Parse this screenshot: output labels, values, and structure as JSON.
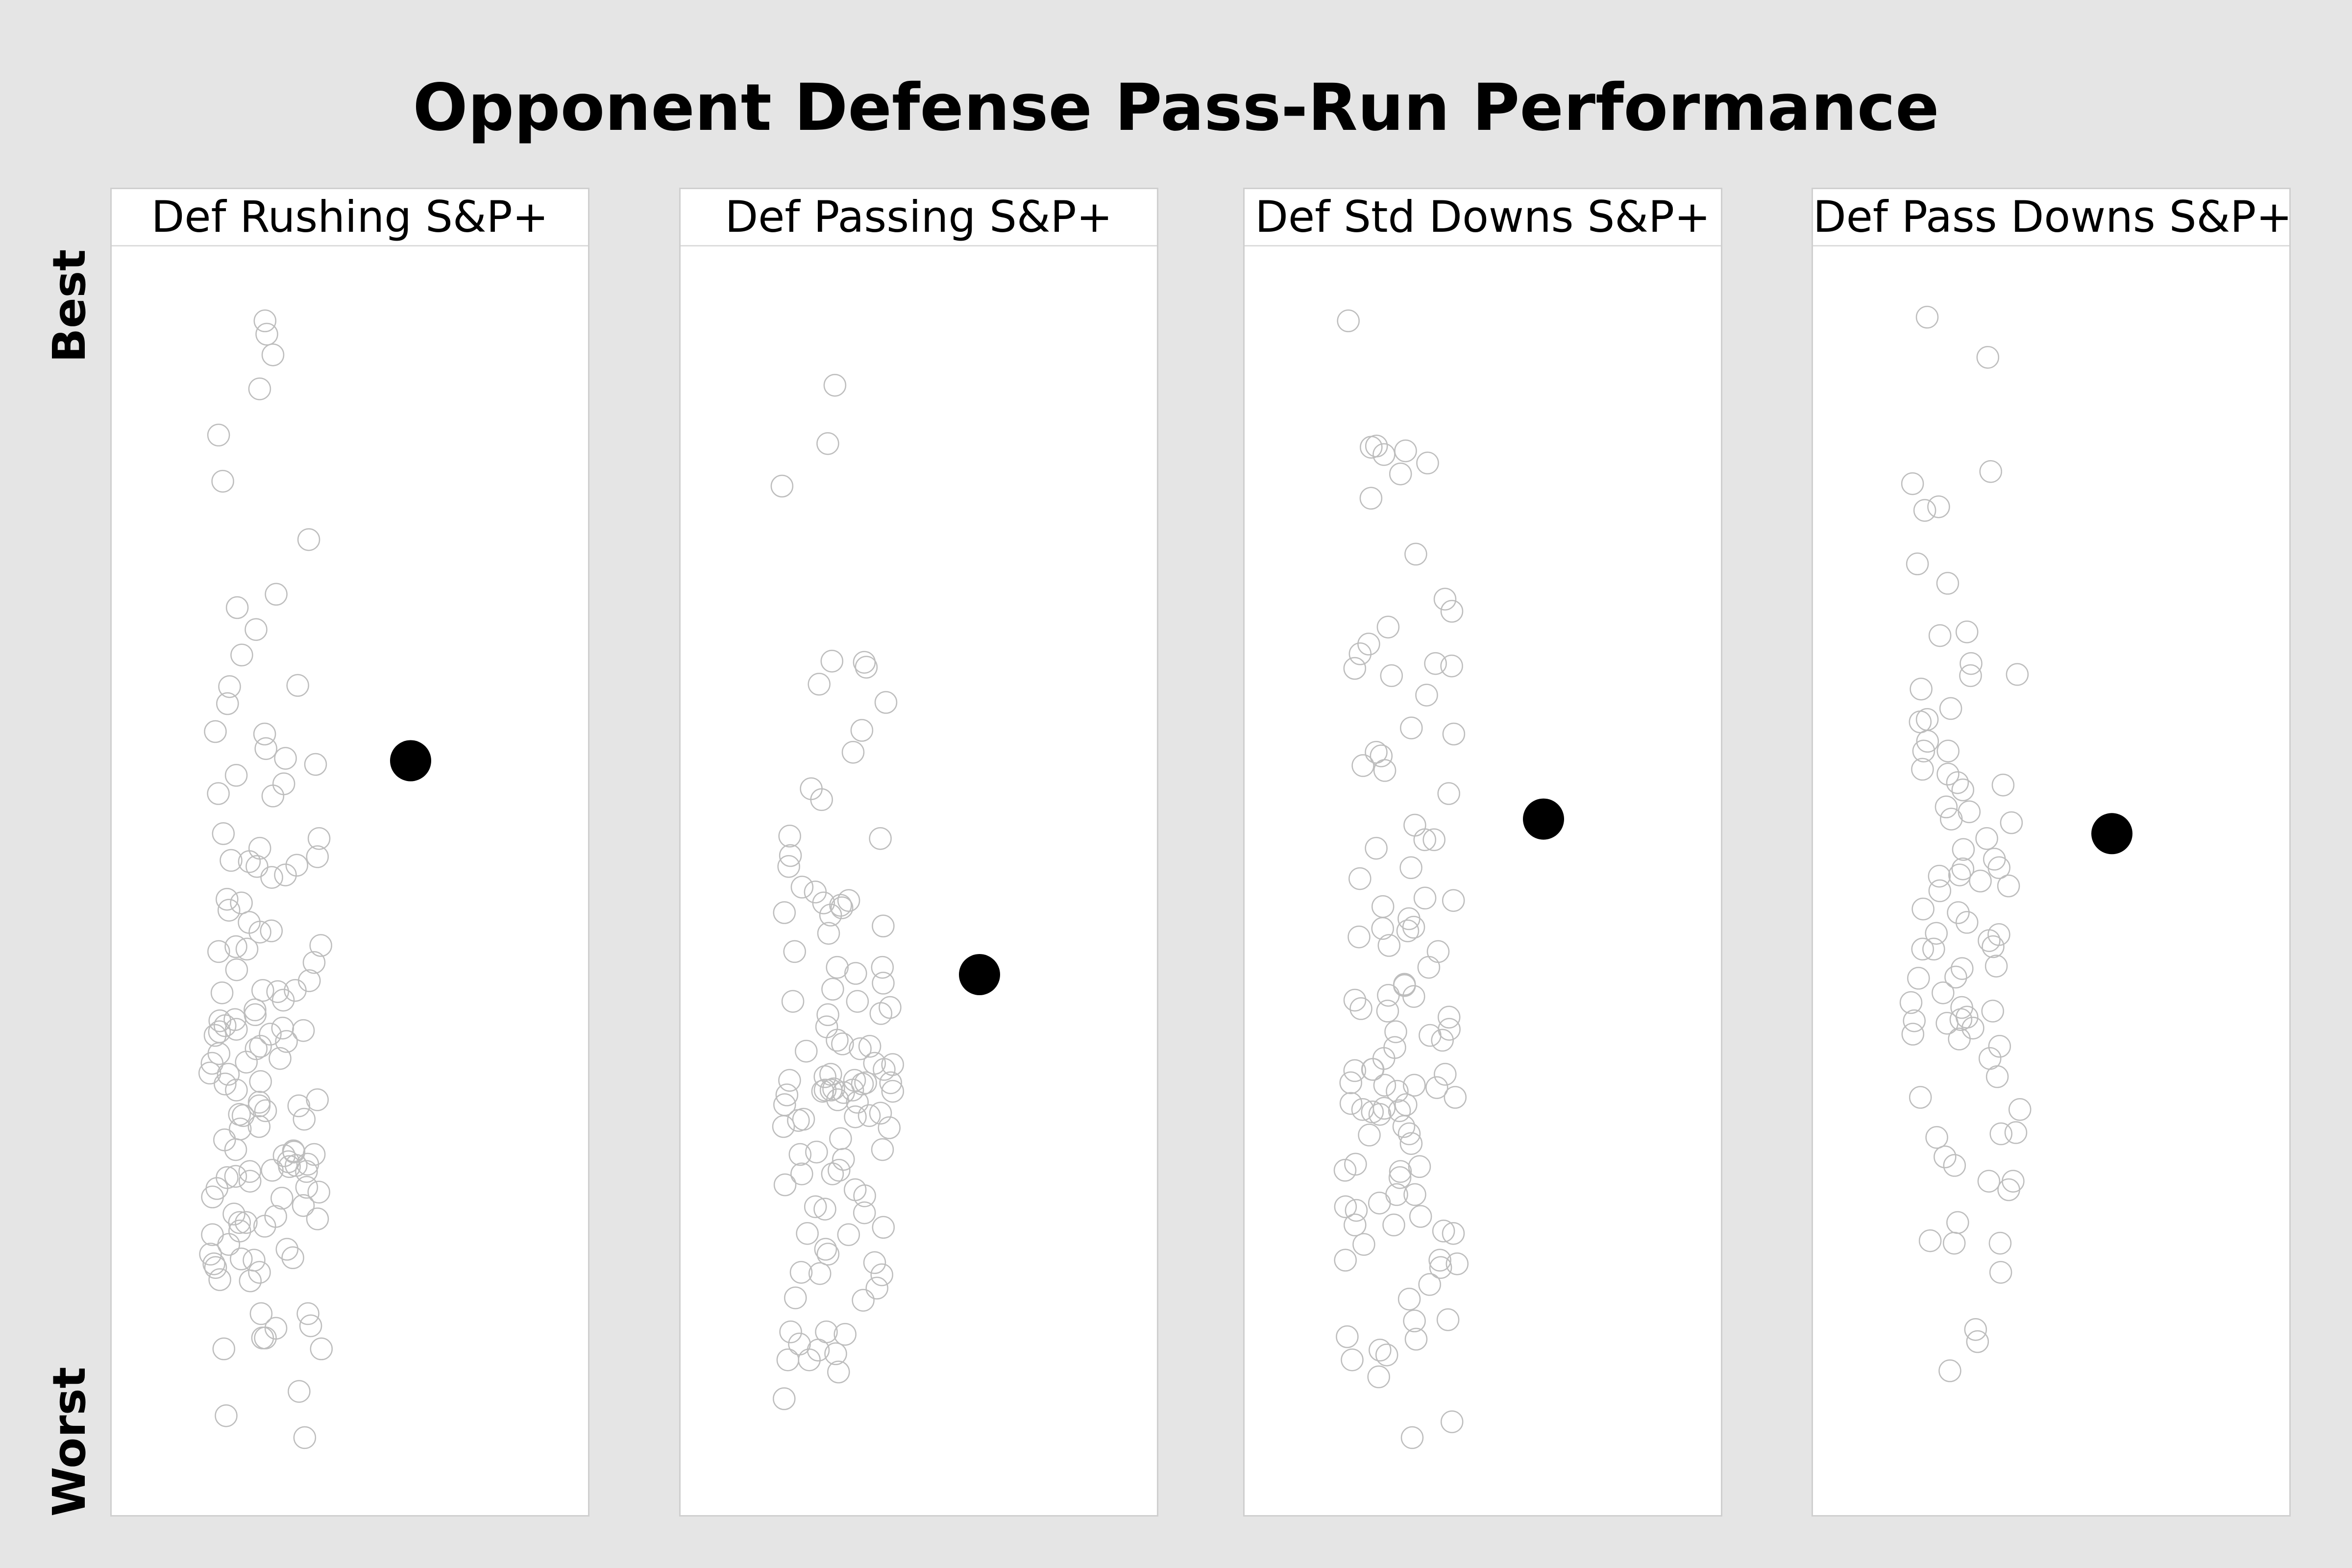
{
  "title": "Opponent Defense Pass-Run Performance",
  "y_axis": {
    "top_label": "Best",
    "bottom_label": "Worst"
  },
  "chart_data": {
    "type": "strip",
    "title": "Opponent Defense Pass-Run Performance",
    "ylabel_top": "Best",
    "ylabel_bottom": "Worst",
    "grid": false,
    "legend": "none",
    "colors": {
      "others": "#bdbdbd",
      "highlight": "#000000"
    },
    "ylim": [
      0,
      1
    ],
    "panels": [
      {
        "name": "Def Rushing S&P+",
        "highlight": 0.601,
        "others": [
          0.963,
          0.935,
          0.831,
          0.727,
          0.907,
          0.952,
          0.869,
          0.783,
          0.738,
          0.709,
          0.688,
          0.663,
          0.582,
          0.574,
          0.611,
          0.589,
          0.603,
          0.648,
          0.572,
          0.623,
          0.662,
          0.625,
          0.598,
          0.537,
          0.541,
          0.529,
          0.522,
          0.519,
          0.514,
          0.505,
          0.507,
          0.484,
          0.478,
          0.449,
          0.46,
          0.448,
          0.461,
          0.446,
          0.487,
          0.515,
          0.518,
          0.468,
          0.444,
          0.435,
          0.429,
          0.42,
          0.412,
          0.38,
          0.411,
          0.396,
          0.412,
          0.404,
          0.383,
          0.388,
          0.366,
          0.387,
          0.375,
          0.364,
          0.37,
          0.381,
          0.322,
          0.353,
          0.3,
          0.313,
          0.317,
          0.306,
          0.337,
          0.32,
          0.31,
          0.33,
          0.28,
          0.289,
          0.298,
          0.268,
          0.263,
          0.246,
          0.277,
          0.25,
          0.279,
          0.241,
          0.264,
          0.211,
          0.221,
          0.255,
          0.228,
          0.19,
          0.199,
          0.192,
          0.214,
          0.224,
          0.195,
          0.173,
          0.226,
          0.18,
          0.174,
          0.117,
          0.146,
          0.146,
          0.134,
          0.126,
          0.117,
          0.082,
          0.136,
          0.221,
          0.242,
          0.258,
          0.267,
          0.271,
          0.276,
          0.269,
          0.259,
          0.235,
          0.203,
          0.187,
          0.36,
          0.352,
          0.376,
          0.379,
          0.044,
          0.062,
          0.126,
          0.184,
          0.191,
          0.218,
          0.249,
          0.263,
          0.281,
          0.309,
          0.317,
          0.335,
          0.343,
          0.344,
          0.356,
          0.378,
          0.392,
          0.41
        ]
      },
      {
        "name": "Def Passing S&P+",
        "highlight": 0.425,
        "others": [
          0.91,
          0.862,
          0.827,
          0.678,
          0.683,
          0.682,
          0.664,
          0.649,
          0.626,
          0.608,
          0.578,
          0.569,
          0.539,
          0.537,
          0.523,
          0.514,
          0.497,
          0.493,
          0.476,
          0.486,
          0.474,
          0.484,
          0.48,
          0.465,
          0.482,
          0.459,
          0.444,
          0.431,
          0.426,
          0.431,
          0.418,
          0.403,
          0.413,
          0.398,
          0.393,
          0.392,
          0.371,
          0.364,
          0.366,
          0.347,
          0.368,
          0.351,
          0.33,
          0.352,
          0.343,
          0.338,
          0.336,
          0.328,
          0.338,
          0.33,
          0.336,
          0.309,
          0.322,
          0.33,
          0.311,
          0.335,
          0.326,
          0.329,
          0.331,
          0.329,
          0.308,
          0.305,
          0.32,
          0.277,
          0.306,
          0.29,
          0.279,
          0.3,
          0.299,
          0.264,
          0.252,
          0.232,
          0.261,
          0.248,
          0.212,
          0.229,
          0.234,
          0.217,
          0.211,
          0.199,
          0.188,
          0.18,
          0.179,
          0.195,
          0.178,
          0.129,
          0.131,
          0.121,
          0.113,
          0.108,
          0.131,
          0.098,
          0.116,
          0.076,
          0.108,
          0.243,
          0.261,
          0.273,
          0.281,
          0.403,
          0.382,
          0.362,
          0.341,
          0.318,
          0.159,
          0.157,
          0.167
        ]
      },
      {
        "name": "Def Std Downs S&P+",
        "highlight": 0.553,
        "others": [
          0.963,
          0.856,
          0.86,
          0.853,
          0.859,
          0.846,
          0.837,
          0.817,
          0.771,
          0.734,
          0.724,
          0.711,
          0.679,
          0.681,
          0.671,
          0.677,
          0.697,
          0.689,
          0.655,
          0.628,
          0.623,
          0.608,
          0.593,
          0.605,
          0.597,
          0.574,
          0.548,
          0.536,
          0.536,
          0.529,
          0.513,
          0.504,
          0.488,
          0.486,
          0.464,
          0.463,
          0.481,
          0.461,
          0.471,
          0.456,
          0.449,
          0.444,
          0.431,
          0.417,
          0.416,
          0.407,
          0.408,
          0.404,
          0.397,
          0.395,
          0.39,
          0.375,
          0.38,
          0.378,
          0.371,
          0.365,
          0.346,
          0.343,
          0.356,
          0.347,
          0.347,
          0.336,
          0.334,
          0.315,
          0.324,
          0.332,
          0.334,
          0.318,
          0.319,
          0.329,
          0.314,
          0.313,
          0.31,
          0.312,
          0.3,
          0.294,
          0.293,
          0.286,
          0.267,
          0.263,
          0.269,
          0.264,
          0.258,
          0.244,
          0.234,
          0.244,
          0.231,
          0.219,
          0.237,
          0.219,
          0.226,
          0.212,
          0.214,
          0.203,
          0.19,
          0.19,
          0.187,
          0.184,
          0.17,
          0.158,
          0.141,
          0.127,
          0.116,
          0.14,
          0.108,
          0.125,
          0.112,
          0.094,
          0.057,
          0.044
        ]
      },
      {
        "name": "Def Pass Downs S&P+",
        "highlight": 0.541,
        "others": [
          0.966,
          0.933,
          0.839,
          0.829,
          0.81,
          0.807,
          0.747,
          0.763,
          0.704,
          0.707,
          0.681,
          0.671,
          0.672,
          0.66,
          0.644,
          0.633,
          0.635,
          0.617,
          0.609,
          0.609,
          0.59,
          0.594,
          0.583,
          0.563,
          0.581,
          0.577,
          0.559,
          0.55,
          0.537,
          0.553,
          0.52,
          0.528,
          0.506,
          0.513,
          0.494,
          0.502,
          0.507,
          0.512,
          0.498,
          0.479,
          0.468,
          0.476,
          0.459,
          0.458,
          0.453,
          0.446,
          0.448,
          0.446,
          0.43,
          0.432,
          0.422,
          0.423,
          0.41,
          0.402,
          0.398,
          0.395,
          0.385,
          0.387,
          0.39,
          0.388,
          0.381,
          0.376,
          0.366,
          0.372,
          0.356,
          0.341,
          0.324,
          0.314,
          0.294,
          0.295,
          0.291,
          0.275,
          0.268,
          0.255,
          0.255,
          0.248,
          0.221,
          0.204,
          0.204,
          0.206,
          0.18,
          0.133,
          0.123,
          0.099
        ]
      }
    ]
  }
}
